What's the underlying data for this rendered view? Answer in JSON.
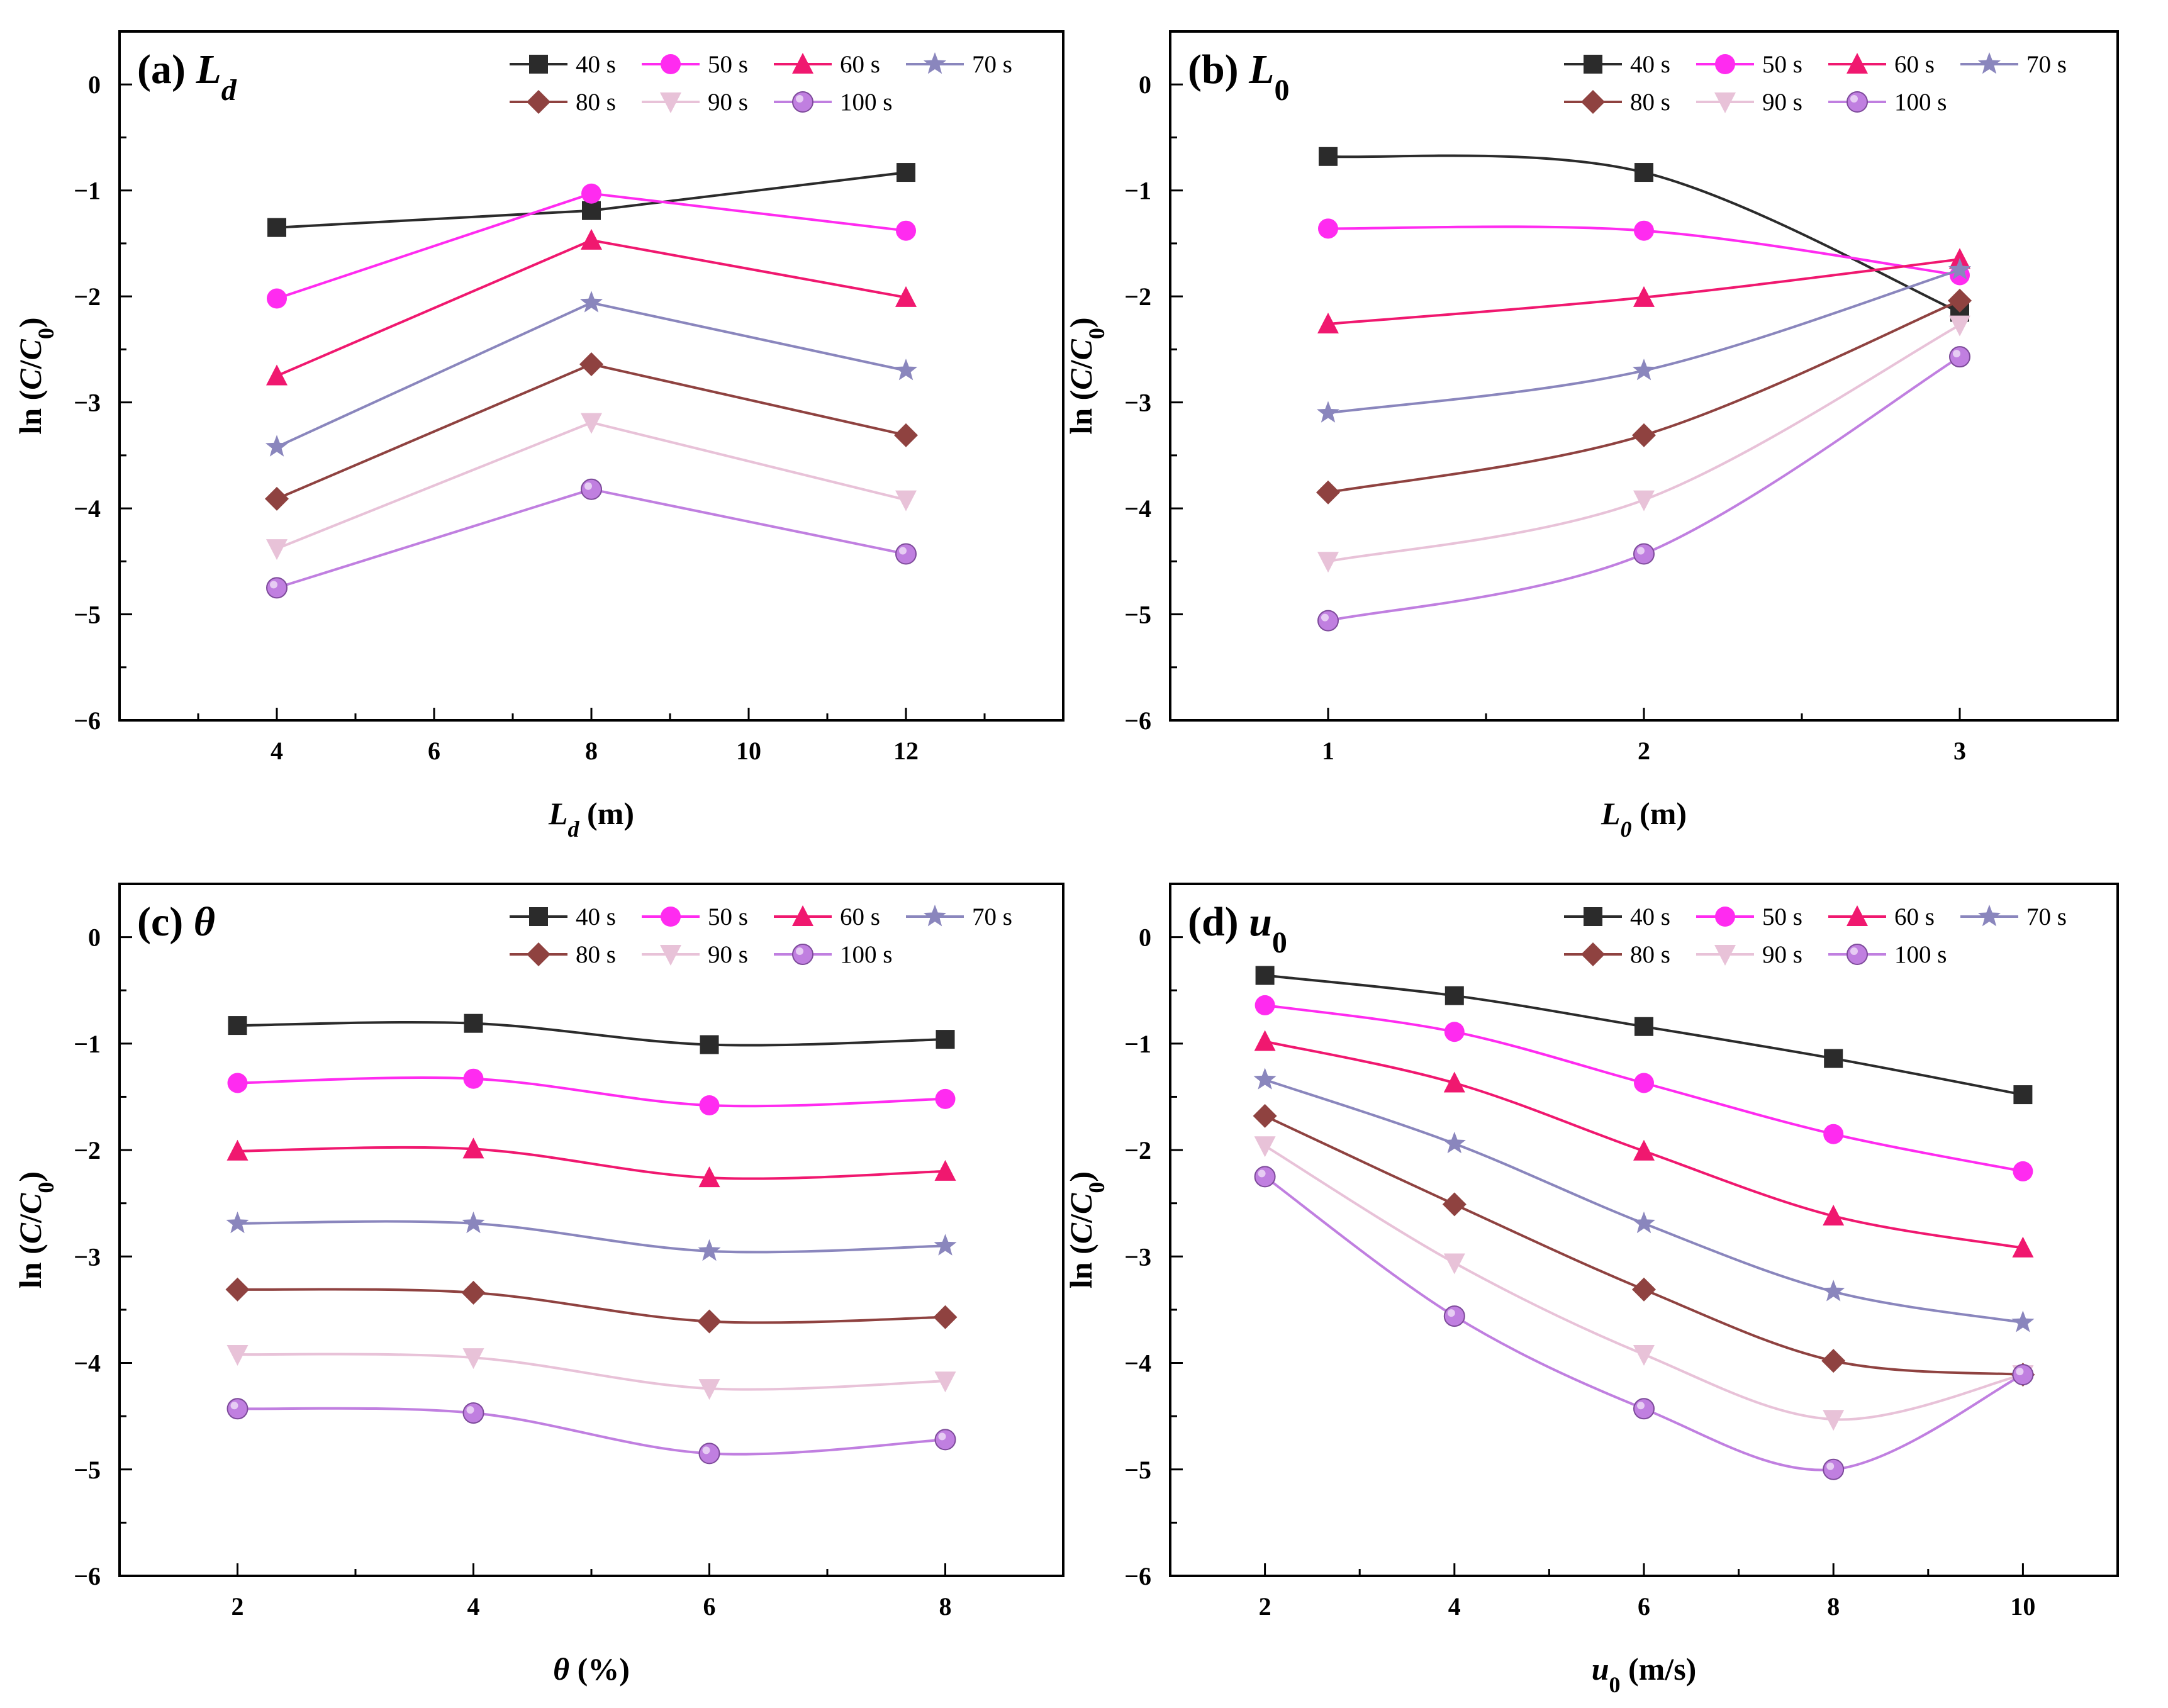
{
  "figure": {
    "colors": {
      "40 s": "#2b2b2b",
      "50 s": "#ff2bf0",
      "60 s": "#f0186f",
      "70 s": "#8a86bd",
      "80 s": "#8f4240",
      "90 s": "#e8c2d8",
      "100 s": "#c07fe0"
    },
    "markers": {
      "40 s": "square",
      "50 s": "circle",
      "60 s": "triangle-up",
      "70 s": "star",
      "80 s": "diamond",
      "90 s": "triangle-down",
      "100 s": "sphere"
    }
  },
  "chart_data": [
    {
      "type": "line",
      "panel_label": "(a) ",
      "title_symbol": "L",
      "title_sub": "d",
      "title_sub_style": "italic",
      "xlabel_symbol": "L",
      "xlabel_sub": "d",
      "xlabel_sub_style": "italic",
      "xlabel_unit": " (m)",
      "ylabel": "ln (C/C0)",
      "x": [
        4,
        8,
        12
      ],
      "xlim": [
        2,
        14
      ],
      "xticks": [
        4,
        6,
        8,
        10,
        12
      ],
      "ylim": [
        -6,
        0.5
      ],
      "yticks": [
        0,
        -1,
        -2,
        -3,
        -4,
        -5,
        -6
      ],
      "smooth": false,
      "legend_position": "top-right",
      "series": [
        {
          "name": "40 s",
          "values": [
            -1.35,
            -1.19,
            -0.83
          ]
        },
        {
          "name": "50 s",
          "values": [
            -2.02,
            -1.03,
            -1.38
          ]
        },
        {
          "name": "60 s",
          "values": [
            -2.75,
            -1.47,
            -2.01
          ]
        },
        {
          "name": "70 s",
          "values": [
            -3.42,
            -2.06,
            -2.7
          ]
        },
        {
          "name": "80 s",
          "values": [
            -3.91,
            -2.64,
            -3.31
          ]
        },
        {
          "name": "90 s",
          "values": [
            -4.38,
            -3.19,
            -3.92
          ]
        },
        {
          "name": "100 s",
          "values": [
            -4.75,
            -3.82,
            -4.43
          ]
        }
      ]
    },
    {
      "type": "line",
      "panel_label": "(b) ",
      "title_symbol": "L",
      "title_sub": "0",
      "title_sub_style": "normal",
      "xlabel_symbol": "L",
      "xlabel_sub": "0",
      "xlabel_sub_style": "italic",
      "xlabel_unit": " (m)",
      "ylabel": "ln (C/C0)",
      "x": [
        1,
        2,
        3
      ],
      "xlim": [
        0.5,
        3.5
      ],
      "xticks": [
        1,
        2,
        3
      ],
      "ylim": [
        -6,
        0.5
      ],
      "yticks": [
        0,
        -1,
        -2,
        -3,
        -4,
        -5,
        -6
      ],
      "smooth": true,
      "legend_position": "top-right",
      "series": [
        {
          "name": "40 s",
          "values": [
            -0.68,
            -0.83,
            -2.15
          ]
        },
        {
          "name": "50 s",
          "values": [
            -1.36,
            -1.38,
            -1.8
          ]
        },
        {
          "name": "60 s",
          "values": [
            -2.26,
            -2.01,
            -1.65
          ]
        },
        {
          "name": "70 s",
          "values": [
            -3.1,
            -2.7,
            -1.75
          ]
        },
        {
          "name": "80 s",
          "values": [
            -3.85,
            -3.31,
            -2.04
          ]
        },
        {
          "name": "90 s",
          "values": [
            -4.5,
            -3.92,
            -2.27
          ]
        },
        {
          "name": "100 s",
          "values": [
            -5.06,
            -4.43,
            -2.57
          ]
        }
      ]
    },
    {
      "type": "line",
      "panel_label": "(c) ",
      "title_symbol": "θ",
      "title_sub": "",
      "title_sub_style": "normal",
      "xlabel_symbol": "θ",
      "xlabel_sub": "",
      "xlabel_sub_style": "normal",
      "xlabel_unit": " (%)",
      "ylabel": "ln (C/C0)",
      "x": [
        2,
        4,
        6,
        8
      ],
      "xlim": [
        1,
        9
      ],
      "xticks": [
        2,
        4,
        6,
        8
      ],
      "ylim": [
        -6,
        0.5
      ],
      "yticks": [
        0,
        -1,
        -2,
        -3,
        -4,
        -5,
        -6
      ],
      "smooth": true,
      "legend_position": "top-right",
      "series": [
        {
          "name": "40 s",
          "values": [
            -0.83,
            -0.81,
            -1.01,
            -0.96
          ]
        },
        {
          "name": "50 s",
          "values": [
            -1.37,
            -1.33,
            -1.58,
            -1.52
          ]
        },
        {
          "name": "60 s",
          "values": [
            -2.01,
            -1.99,
            -2.26,
            -2.2
          ]
        },
        {
          "name": "70 s",
          "values": [
            -2.69,
            -2.69,
            -2.95,
            -2.9
          ]
        },
        {
          "name": "80 s",
          "values": [
            -3.31,
            -3.34,
            -3.61,
            -3.57
          ]
        },
        {
          "name": "90 s",
          "values": [
            -3.92,
            -3.95,
            -4.24,
            -4.17
          ]
        },
        {
          "name": "100 s",
          "values": [
            -4.43,
            -4.47,
            -4.85,
            -4.72
          ]
        }
      ]
    },
    {
      "type": "line",
      "panel_label": "(d) ",
      "title_symbol": "u",
      "title_sub": "0",
      "title_sub_style": "normal",
      "xlabel_symbol": "u",
      "xlabel_sub": "0",
      "xlabel_sub_style": "normal",
      "xlabel_unit": " (m/s)",
      "ylabel": "ln (C/C0)",
      "x": [
        2,
        4,
        6,
        8,
        10
      ],
      "xlim": [
        1,
        11
      ],
      "xticks": [
        2,
        4,
        6,
        8,
        10
      ],
      "ylim": [
        -6,
        0.5
      ],
      "yticks": [
        0,
        -1,
        -2,
        -3,
        -4,
        -5,
        -6
      ],
      "smooth": true,
      "legend_position": "top-right",
      "series": [
        {
          "name": "40 s",
          "values": [
            -0.36,
            -0.55,
            -0.84,
            -1.14,
            -1.48
          ]
        },
        {
          "name": "50 s",
          "values": [
            -0.64,
            -0.89,
            -1.37,
            -1.85,
            -2.2
          ]
        },
        {
          "name": "60 s",
          "values": [
            -0.98,
            -1.37,
            -2.01,
            -2.62,
            -2.92
          ]
        },
        {
          "name": "70 s",
          "values": [
            -1.34,
            -1.94,
            -2.69,
            -3.33,
            -3.62
          ]
        },
        {
          "name": "80 s",
          "values": [
            -1.68,
            -2.51,
            -3.31,
            -3.98,
            -4.11
          ]
        },
        {
          "name": "90 s",
          "values": [
            -1.96,
            -3.06,
            -3.92,
            -4.53,
            -4.11
          ]
        },
        {
          "name": "100 s",
          "values": [
            -2.25,
            -3.56,
            -4.43,
            -5.0,
            -4.11
          ]
        }
      ]
    }
  ]
}
